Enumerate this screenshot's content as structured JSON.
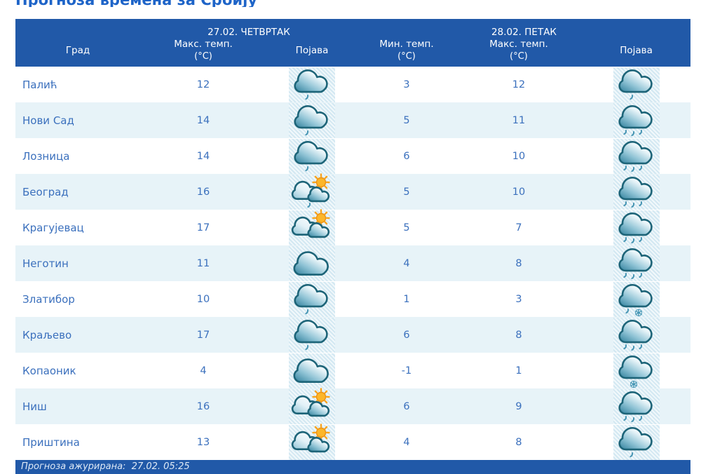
{
  "page": {
    "title": "Прогноза времена за Србију",
    "updated_label": "Прогноза ажурирана:  27.02. 05:25"
  },
  "table": {
    "day1_header": "27.02. ЧЕТВРТАК",
    "day2_header": "28.02. ПЕТАК",
    "columns": {
      "city": "Град",
      "max_temp": "Макс. темп.",
      "min_temp": "Мин. темп.",
      "unit": "(°C)",
      "phenomenon": "Појава"
    },
    "rows": [
      {
        "city": "Палић",
        "day1_max": "12",
        "day1_icon": "cloud-light-rain",
        "day2_min": "3",
        "day2_max": "12",
        "day2_icon": "cloud-light-rain"
      },
      {
        "city": "Нови Сад",
        "day1_max": "14",
        "day1_icon": "cloud-light-rain",
        "day2_min": "5",
        "day2_max": "11",
        "day2_icon": "cloud-rain"
      },
      {
        "city": "Лозница",
        "day1_max": "14",
        "day1_icon": "cloud-light-rain",
        "day2_min": "6",
        "day2_max": "10",
        "day2_icon": "cloud-rain"
      },
      {
        "city": "Београд",
        "day1_max": "16",
        "day1_icon": "sun-clouds-light-rain",
        "day2_min": "5",
        "day2_max": "10",
        "day2_icon": "cloud-rain"
      },
      {
        "city": "Крагујевац",
        "day1_max": "17",
        "day1_icon": "sun-clouds",
        "day2_min": "5",
        "day2_max": "7",
        "day2_icon": "cloud-rain"
      },
      {
        "city": "Неготин",
        "day1_max": "11",
        "day1_icon": "cloud",
        "day2_min": "4",
        "day2_max": "8",
        "day2_icon": "cloud-rain"
      },
      {
        "city": "Златибор",
        "day1_max": "10",
        "day1_icon": "cloud-light-rain",
        "day2_min": "1",
        "day2_max": "3",
        "day2_icon": "cloud-rain-snow"
      },
      {
        "city": "Краљево",
        "day1_max": "17",
        "day1_icon": "cloud-light-rain",
        "day2_min": "6",
        "day2_max": "8",
        "day2_icon": "cloud-rain"
      },
      {
        "city": "Копаоник",
        "day1_max": "4",
        "day1_icon": "cloud",
        "day2_min": "-1",
        "day2_max": "1",
        "day2_icon": "cloud-snow"
      },
      {
        "city": "Ниш",
        "day1_max": "16",
        "day1_icon": "sun-clouds",
        "day2_min": "6",
        "day2_max": "9",
        "day2_icon": "cloud-rain"
      },
      {
        "city": "Приштина",
        "day1_max": "13",
        "day1_icon": "sun-clouds",
        "day2_min": "4",
        "day2_max": "8",
        "day2_icon": "cloud-light-rain"
      }
    ]
  },
  "icon_legend": {
    "cloud": "cloudy",
    "cloud-light-rain": "cloudy with light rain",
    "cloud-rain": "cloudy with rain",
    "sun-clouds": "partly sunny",
    "sun-clouds-light-rain": "partly sunny with light rain",
    "cloud-rain-snow": "rain and snow (sleet)",
    "cloud-snow": "snow"
  },
  "colors": {
    "header_blue": "#2159a8",
    "row_alt_blue": "#e7f3f8",
    "text_blue": "#3b70bd",
    "title_blue": "#1e64c8",
    "cloud_teal": "#2e7f9b",
    "cloud_outline": "#1d6478",
    "sun_orange": "#f8a41e",
    "icon_cell_bg": "#e0eff6"
  }
}
